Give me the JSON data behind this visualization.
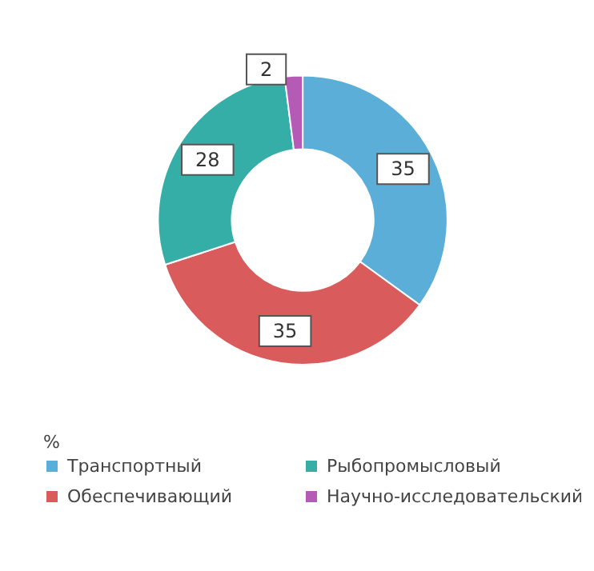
{
  "chart_data": {
    "type": "donut",
    "legend_title": "%",
    "categories": [
      "Транспортный",
      "Обеспечивающий",
      "Рыбопромысловый",
      "Научно-исследовательский"
    ],
    "values": [
      35,
      35,
      28,
      2
    ],
    "colors": [
      "#5aaed8",
      "#d95b5b",
      "#36aea8",
      "#b65bb5"
    ],
    "data_labels": true,
    "legend": "bottom"
  }
}
